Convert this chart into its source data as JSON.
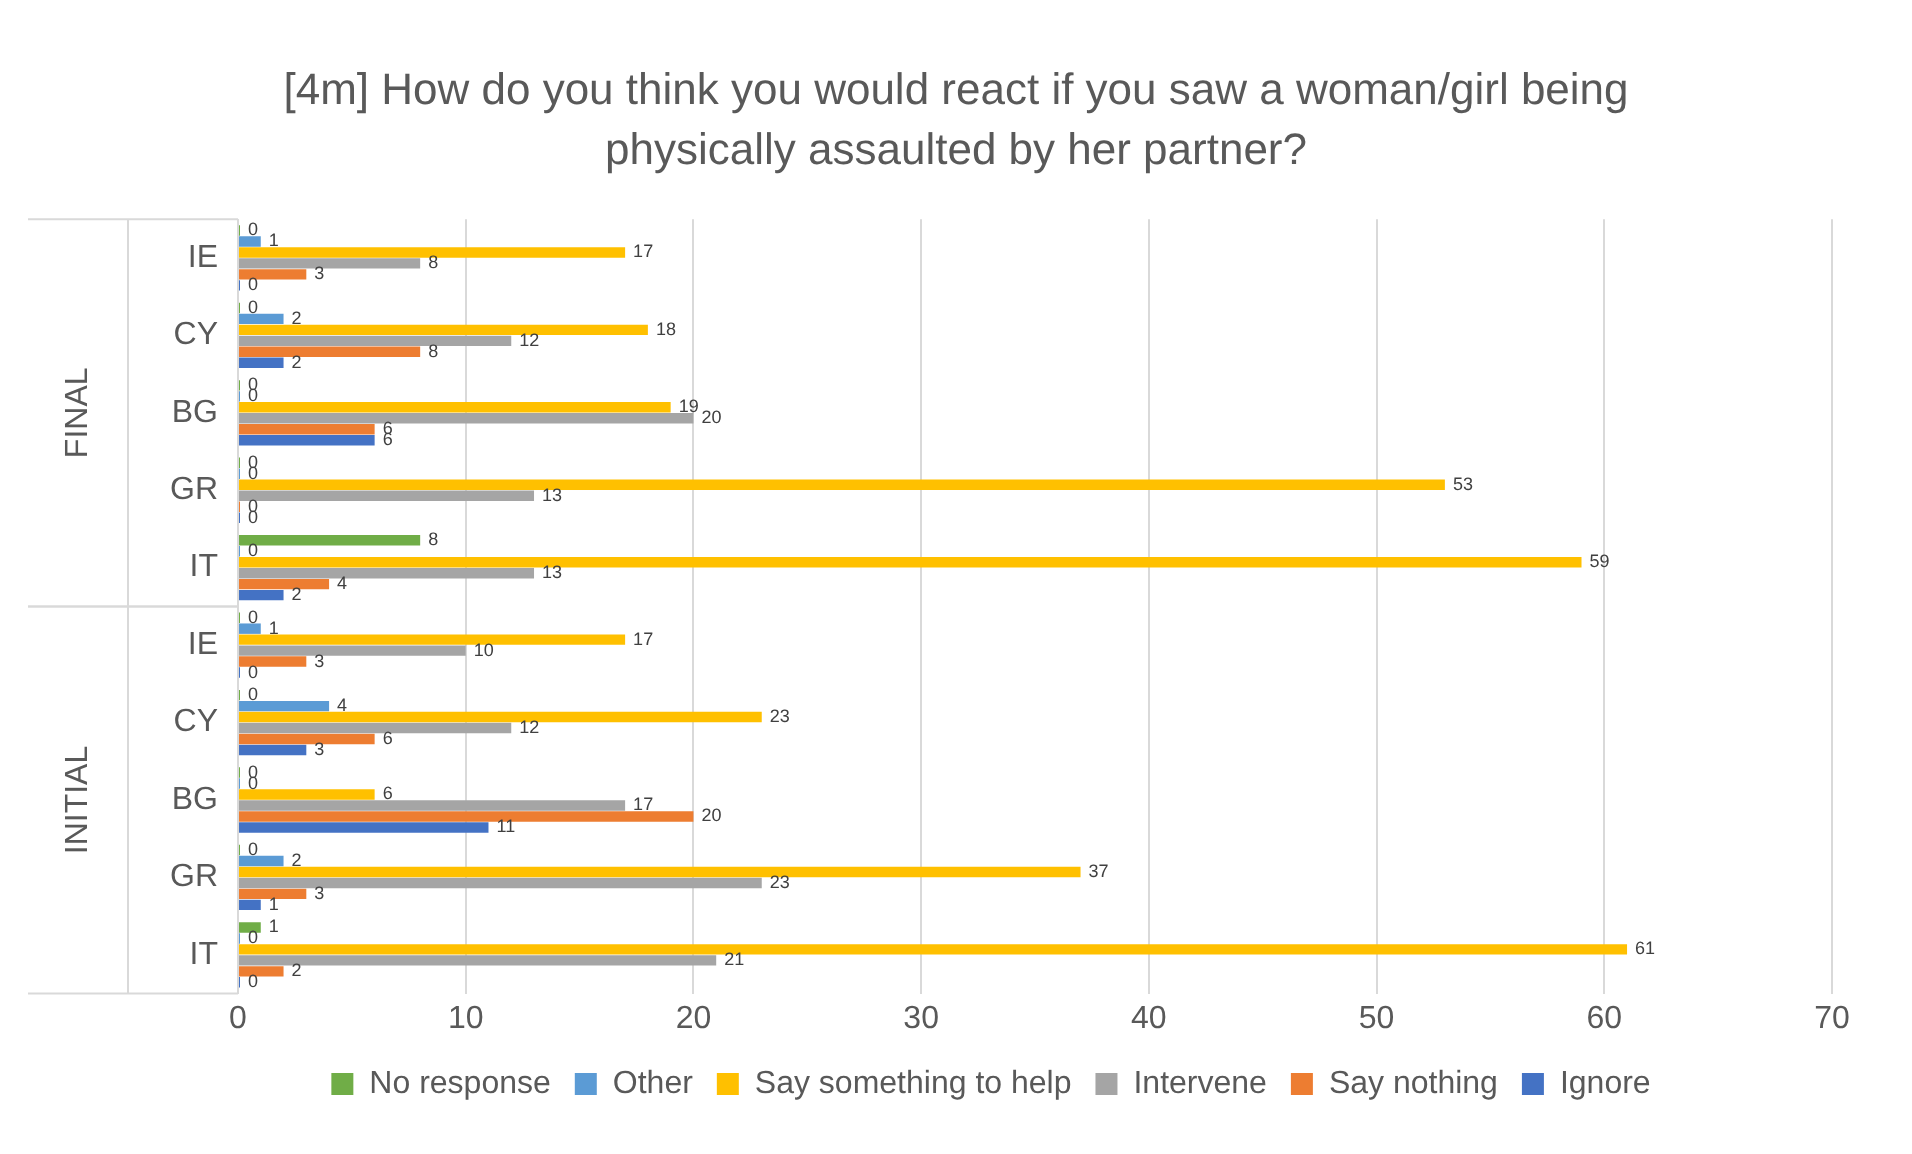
{
  "chart_data": {
    "type": "bar",
    "orientation": "horizontal",
    "title": "[4m] How do you think you would react if you saw a woman/girl being physically assaulted by her partner?",
    "categories": [
      "IE",
      "CY",
      "BG",
      "GR",
      "IT",
      "IE",
      "CY",
      "BG",
      "GR",
      "IT"
    ],
    "annotations": [
      "FINAL",
      "INITIAL"
    ],
    "series": [
      {
        "name": "No response",
        "color": "#70ad47",
        "values": [
          0,
          0,
          0,
          0,
          8,
          0,
          0,
          0,
          0,
          1
        ]
      },
      {
        "name": "Other",
        "color": "#5b9bd5",
        "values": [
          1,
          2,
          0,
          0,
          0,
          1,
          4,
          0,
          2,
          0
        ]
      },
      {
        "name": "Say something to help",
        "color": "#ffc000",
        "values": [
          17,
          18,
          19,
          53,
          59,
          17,
          23,
          6,
          37,
          61
        ]
      },
      {
        "name": "Intervene",
        "color": "#a5a5a5",
        "values": [
          8,
          12,
          20,
          13,
          13,
          10,
          12,
          17,
          23,
          21
        ]
      },
      {
        "name": "Say nothing",
        "color": "#ed7d31",
        "values": [
          3,
          8,
          6,
          0,
          4,
          3,
          6,
          20,
          3,
          2
        ]
      },
      {
        "name": "Ignore",
        "color": "#4472c4",
        "values": [
          0,
          2,
          6,
          0,
          2,
          0,
          3,
          11,
          1,
          0
        ]
      }
    ],
    "xlim": [
      0,
      70
    ],
    "xticks": [
      0,
      10,
      20,
      30,
      40,
      50,
      60,
      70
    ],
    "grid": "x",
    "legend": "bottom",
    "data_labels": true
  }
}
